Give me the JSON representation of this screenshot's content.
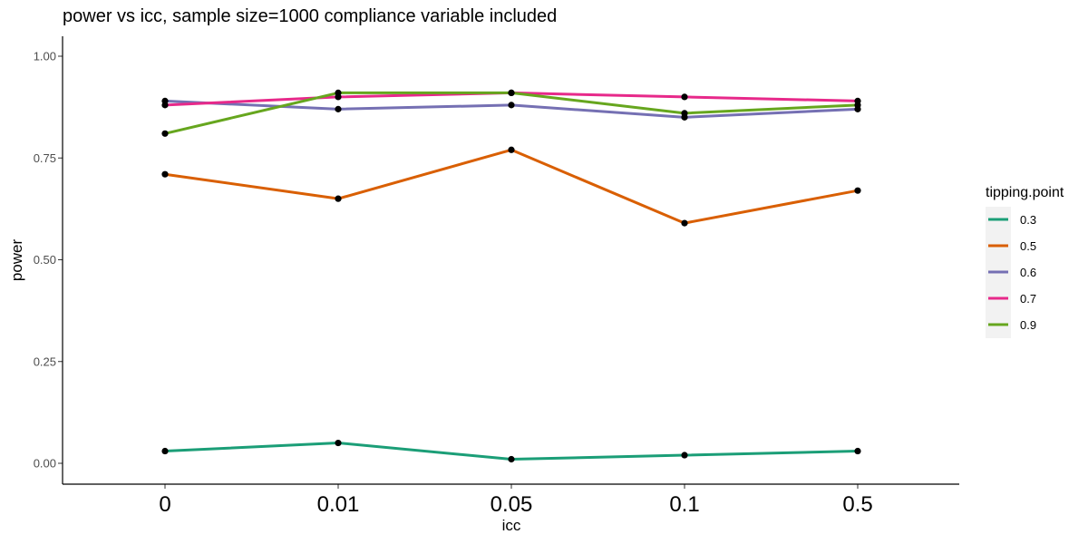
{
  "chart_data": {
    "type": "line",
    "title": "power vs icc, sample size=1000 compliance variable included",
    "xlabel": "icc",
    "ylabel": "power",
    "categories": [
      "0",
      "0.01",
      "0.05",
      "0.1",
      "0.5"
    ],
    "ylim": [
      -0.05,
      1.05
    ],
    "yticks": [
      0.0,
      0.25,
      0.5,
      0.75,
      1.0
    ],
    "ytick_labels": [
      "0.00",
      "0.25",
      "0.50",
      "0.75",
      "1.00"
    ],
    "grid": false,
    "legend": {
      "title": "tipping.point",
      "placement": "right"
    },
    "point_color": "#000000",
    "series": [
      {
        "name": "0.3",
        "color": "#1b9e77",
        "values": [
          0.03,
          0.05,
          0.01,
          0.02,
          0.03
        ]
      },
      {
        "name": "0.5",
        "color": "#d95f02",
        "values": [
          0.71,
          0.65,
          0.77,
          0.59,
          0.67
        ]
      },
      {
        "name": "0.6",
        "color": "#7570b3",
        "values": [
          0.89,
          0.87,
          0.88,
          0.85,
          0.87
        ]
      },
      {
        "name": "0.7",
        "color": "#e7298a",
        "values": [
          0.88,
          0.9,
          0.91,
          0.9,
          0.89
        ]
      },
      {
        "name": "0.9",
        "color": "#66a61e",
        "values": [
          0.81,
          0.91,
          0.91,
          0.86,
          0.88
        ]
      }
    ]
  }
}
